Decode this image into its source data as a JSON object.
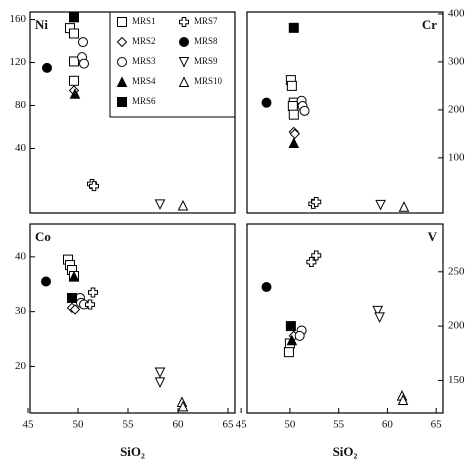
{
  "chart_data": [
    {
      "type": "scatter",
      "label": "Ni",
      "label_corner": "left",
      "yaxis_side": "left",
      "xlim": [
        45.2,
        65.7
      ],
      "ylim": [
        -20,
        167
      ],
      "yticks": [
        40,
        80,
        120,
        160
      ],
      "series": [
        {
          "name": "MRS1",
          "marker": "square",
          "filled": false,
          "x": [
            49.2,
            49.6,
            49.6,
            49.6
          ],
          "y": [
            152,
            147,
            121,
            103
          ]
        },
        {
          "name": "MRS2",
          "marker": "diamond",
          "filled": false,
          "x": [
            49.6
          ],
          "y": [
            94
          ]
        },
        {
          "name": "MRS3",
          "marker": "circle",
          "filled": false,
          "x": [
            50.5,
            50.4,
            50.6
          ],
          "y": [
            139,
            125,
            119
          ]
        },
        {
          "name": "MRS4",
          "marker": "triangle",
          "filled": true,
          "x": [
            49.7
          ],
          "y": [
            91
          ]
        },
        {
          "name": "MRS6",
          "marker": "square",
          "filled": true,
          "x": [
            49.6
          ],
          "y": [
            162
          ]
        },
        {
          "name": "MRS7",
          "marker": "cross",
          "filled": false,
          "x": [
            51.4,
            51.6
          ],
          "y": [
            7,
            5
          ]
        },
        {
          "name": "MRS8",
          "marker": "circle",
          "filled": true,
          "x": [
            46.9
          ],
          "y": [
            115
          ]
        },
        {
          "name": "MRS9",
          "marker": "triangle-down",
          "filled": false,
          "x": [
            58.2
          ],
          "y": [
            -12
          ]
        },
        {
          "name": "MRS10",
          "marker": "triangle",
          "filled": false,
          "x": [
            60.5
          ],
          "y": [
            -13
          ]
        }
      ]
    },
    {
      "type": "scatter",
      "label": "Cr",
      "label_corner": "right",
      "yaxis_side": "right",
      "xlim": [
        45.6,
        65.7
      ],
      "ylim": [
        -15,
        404
      ],
      "yticks": [
        100,
        200,
        300,
        400
      ],
      "series": [
        {
          "marker": "square",
          "filled": false,
          "x": [
            50.1,
            50.2,
            50.4,
            50.3,
            50.4
          ],
          "y": [
            262,
            250,
            215,
            208,
            190
          ]
        },
        {
          "marker": "diamond",
          "filled": false,
          "x": [
            50.4,
            50.5
          ],
          "y": [
            154,
            150
          ]
        },
        {
          "marker": "circle",
          "filled": false,
          "x": [
            51.2,
            51.3,
            51.5
          ],
          "y": [
            219,
            208,
            198
          ]
        },
        {
          "marker": "triangle",
          "filled": true,
          "x": [
            50.4
          ],
          "y": [
            131
          ]
        },
        {
          "marker": "square",
          "filled": true,
          "x": [
            50.4
          ],
          "y": [
            371
          ]
        },
        {
          "marker": "cross",
          "filled": false,
          "x": [
            52.4,
            52.7
          ],
          "y": [
            4,
            8
          ]
        },
        {
          "marker": "circle",
          "filled": true,
          "x": [
            47.6
          ],
          "y": [
            215
          ]
        },
        {
          "marker": "triangle-down",
          "filled": false,
          "x": [
            59.3
          ],
          "y": [
            2
          ]
        },
        {
          "marker": "triangle",
          "filled": false,
          "x": [
            61.7
          ],
          "y": [
            -2
          ]
        }
      ]
    },
    {
      "type": "scatter",
      "label": "Co",
      "label_corner": "left",
      "yaxis_side": "left",
      "xlabel": "SiO₂",
      "xlim": [
        45.2,
        65.7
      ],
      "xticks": [
        45,
        50,
        55,
        60,
        65
      ],
      "ylim": [
        11.5,
        46
      ],
      "yticks": [
        20,
        30,
        40
      ],
      "series": [
        {
          "marker": "square",
          "filled": false,
          "x": [
            49.0,
            49.2,
            49.4,
            49.6
          ],
          "y": [
            39.5,
            38.5,
            37.6,
            36.5
          ]
        },
        {
          "marker": "diamond",
          "filled": false,
          "x": [
            49.4,
            49.7
          ],
          "y": [
            30.7,
            30.4
          ]
        },
        {
          "marker": "circle",
          "filled": false,
          "x": [
            50.2,
            50.3,
            50.6
          ],
          "y": [
            32.5,
            31.6,
            31.3
          ]
        },
        {
          "marker": "triangle",
          "filled": true,
          "x": [
            49.6
          ],
          "y": [
            36.4
          ]
        },
        {
          "marker": "square",
          "filled": true,
          "x": [
            49.4
          ],
          "y": [
            32.5
          ]
        },
        {
          "marker": "cross",
          "filled": false,
          "x": [
            51.5,
            51.2
          ],
          "y": [
            33.5,
            31.3
          ]
        },
        {
          "marker": "circle",
          "filled": true,
          "x": [
            46.8
          ],
          "y": [
            35.5
          ]
        },
        {
          "marker": "triangle-down",
          "filled": false,
          "x": [
            58.2,
            58.2
          ],
          "y": [
            18.9,
            17.1
          ]
        },
        {
          "marker": "triangle",
          "filled": false,
          "x": [
            60.4,
            60.5
          ],
          "y": [
            13.5,
            12.7
          ]
        }
      ]
    },
    {
      "type": "scatter",
      "label": "V",
      "label_corner": "right",
      "yaxis_side": "right",
      "xlabel": "SiO₂",
      "xlim": [
        45.6,
        65.7
      ],
      "xticks": [
        45,
        50,
        55,
        60,
        65
      ],
      "ylim": [
        120,
        294
      ],
      "yticks": [
        150,
        200,
        250
      ],
      "series": [
        {
          "marker": "square",
          "filled": false,
          "x": [
            50.0,
            49.9
          ],
          "y": [
            184,
            176
          ]
        },
        {
          "marker": "diamond",
          "filled": false,
          "x": [
            50.4
          ],
          "y": [
            191
          ]
        },
        {
          "marker": "circle",
          "filled": false,
          "x": [
            51.2,
            51.0
          ],
          "y": [
            196,
            191
          ]
        },
        {
          "marker": "triangle",
          "filled": true,
          "x": [
            50.2
          ],
          "y": [
            187
          ]
        },
        {
          "marker": "square",
          "filled": true,
          "x": [
            50.1
          ],
          "y": [
            200
          ]
        },
        {
          "marker": "cross",
          "filled": false,
          "x": [
            52.2,
            52.7
          ],
          "y": [
            259,
            265
          ]
        },
        {
          "marker": "circle",
          "filled": true,
          "x": [
            47.6
          ],
          "y": [
            236
          ]
        },
        {
          "marker": "triangle-down",
          "filled": false,
          "x": [
            59.0,
            59.2
          ],
          "y": [
            214,
            208
          ]
        },
        {
          "marker": "triangle",
          "filled": false,
          "x": [
            61.5,
            61.6
          ],
          "y": [
            136,
            132
          ]
        }
      ]
    }
  ]
}
